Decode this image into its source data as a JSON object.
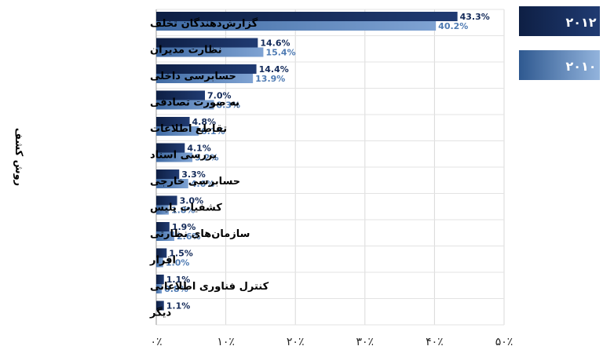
{
  "chart_data": {
    "type": "bar",
    "orientation": "horizontal",
    "title": "",
    "xlabel": "",
    "ylabel": "روش کشف",
    "categories": [
      "گزارش‌دهندگان تخلف",
      "نظارت مدیران",
      "حسابرسی داخلی",
      "به صورت تصادفی",
      "تقاطع اطلاعات",
      "بررسی اسناد",
      "حسابرسی خارجی",
      "کشفیات پلیس",
      "سازمان‌های نظارتی",
      "اقرار",
      "کنترل فناوری اطلاعاتی",
      "دیگر"
    ],
    "series": [
      {
        "name": "۲۰۱۲",
        "color": "#132a59",
        "values": [
          43.3,
          14.6,
          14.4,
          7.0,
          4.8,
          4.1,
          3.3,
          3.0,
          1.9,
          1.5,
          1.1,
          1.1
        ],
        "labels": [
          "43.3%",
          "14.6%",
          "14.4%",
          "7.0%",
          "4.8%",
          "4.1%",
          "3.3%",
          "3.0%",
          "1.9%",
          "1.5%",
          "1.1%",
          "1.1%"
        ]
      },
      {
        "name": "۲۰۱۰",
        "color": "#4f7bb3",
        "values": [
          40.2,
          15.4,
          13.9,
          8.3,
          6.1,
          5.2,
          4.6,
          1.8,
          2.6,
          1.0,
          0.8,
          null
        ],
        "labels": [
          "40.2%",
          "15.4%",
          "13.9%",
          "8.3%",
          "6.1%",
          "5.2%",
          "4.6%",
          "1.8%",
          "2.6%",
          "1.0%",
          "0.8%",
          ""
        ]
      }
    ],
    "xlim": [
      0,
      50
    ],
    "xticks": [
      0,
      10,
      20,
      30,
      40,
      50
    ],
    "xtick_labels": [
      "۰٪",
      "۱۰٪",
      "۲۰٪",
      "۳۰٪",
      "۴۰٪",
      "۵۰٪"
    ],
    "grid": true,
    "legend_position": "right"
  }
}
